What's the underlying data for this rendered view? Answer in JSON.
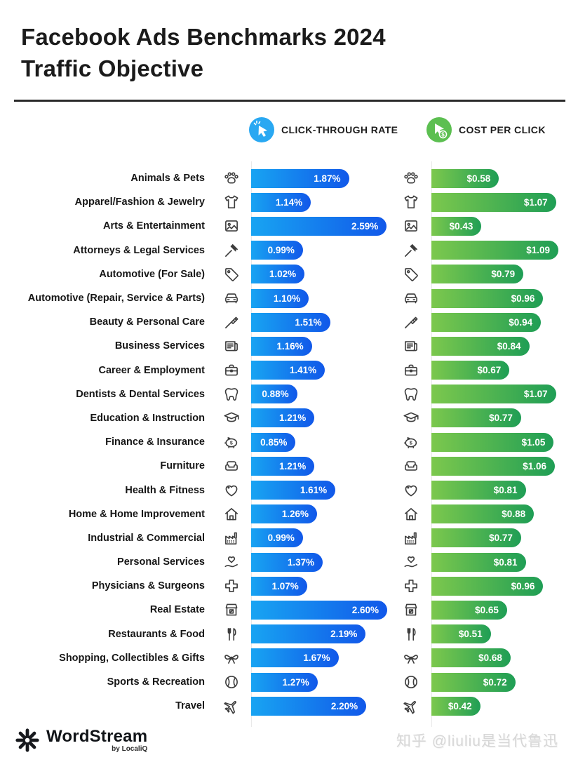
{
  "header": {
    "title_line1": "Facebook Ads Benchmarks 2024",
    "title_line2": "Traffic Objective"
  },
  "legend": {
    "ctr_label": "CLICK-THROUGH RATE",
    "cpc_label": "COST PER CLICK",
    "ctr_icon": "cursor-click-icon",
    "cpc_icon": "cursor-dollar-icon"
  },
  "colors": {
    "ctr_bar_start": "#18a4f2",
    "ctr_bar_end": "#1158e9",
    "cpc_bar_start": "#7cc84d",
    "cpc_bar_end": "#1f9e55",
    "ctr_legend_circle": "#29a8f2",
    "cpc_legend_circle": "#5cbf51"
  },
  "chart_data": {
    "type": "bar",
    "orientation": "horizontal",
    "title": "Facebook Ads Benchmarks 2024 Traffic Objective",
    "legend_position": "top",
    "grid": false,
    "categories": [
      "Animals & Pets",
      "Apparel/Fashion & Jewelry",
      "Arts & Entertainment",
      "Attorneys & Legal Services",
      "Automotive (For Sale)",
      "Automotive (Repair, Service & Parts)",
      "Beauty & Personal Care",
      "Business Services",
      "Career & Employment",
      "Dentists & Dental Services",
      "Education & Instruction",
      "Finance & Insurance",
      "Furniture",
      "Health & Fitness",
      "Home & Home Improvement",
      "Industrial & Commercial",
      "Personal Services",
      "Physicians & Surgeons",
      "Real Estate",
      "Restaurants & Food",
      "Shopping, Collectibles & Gifts",
      "Sports & Recreation",
      "Travel"
    ],
    "icons": [
      "paw-icon",
      "tshirt-icon",
      "picture-icon",
      "gavel-icon",
      "price-tag-icon",
      "car-icon",
      "brush-icon",
      "newspaper-icon",
      "briefcase-icon",
      "tooth-icon",
      "graduation-cap-icon",
      "piggy-bank-icon",
      "sofa-icon",
      "heart-icon",
      "house-icon",
      "factory-icon",
      "hand-heart-icon",
      "medical-cross-icon",
      "storefront-icon",
      "cutlery-icon",
      "bow-icon",
      "ball-icon",
      "airplane-icon"
    ],
    "series": [
      {
        "name": "Click-Through Rate",
        "unit": "%",
        "max": 2.6,
        "values": [
          1.87,
          1.14,
          2.59,
          0.99,
          1.02,
          1.1,
          1.51,
          1.16,
          1.41,
          0.88,
          1.21,
          0.85,
          1.21,
          1.61,
          1.26,
          0.99,
          1.37,
          1.07,
          2.6,
          2.19,
          1.67,
          1.27,
          2.2
        ],
        "labels": [
          "1.87%",
          "1.14%",
          "2.59%",
          "0.99%",
          "1.02%",
          "1.10%",
          "1.51%",
          "1.16%",
          "1.41%",
          "0.88%",
          "1.21%",
          "0.85%",
          "1.21%",
          "1.61%",
          "1.26%",
          "0.99%",
          "1.37%",
          "1.07%",
          "2.60%",
          "2.19%",
          "1.67%",
          "1.27%",
          "2.20%"
        ]
      },
      {
        "name": "Cost Per Click",
        "unit": "$",
        "max": 1.09,
        "values": [
          0.58,
          1.07,
          0.43,
          1.09,
          0.79,
          0.96,
          0.94,
          0.84,
          0.67,
          1.07,
          0.77,
          1.05,
          1.06,
          0.81,
          0.88,
          0.77,
          0.81,
          0.96,
          0.65,
          0.51,
          0.68,
          0.72,
          0.42
        ],
        "labels": [
          "$0.58",
          "$1.07",
          "$0.43",
          "$1.09",
          "$0.79",
          "$0.96",
          "$0.94",
          "$0.84",
          "$0.67",
          "$1.07",
          "$0.77",
          "$1.05",
          "$1.06",
          "$0.81",
          "$0.88",
          "$0.77",
          "$0.81",
          "$0.96",
          "$0.65",
          "$0.51",
          "$0.68",
          "$0.72",
          "$0.42"
        ]
      }
    ]
  },
  "footer": {
    "brand": "WordStream",
    "brand_sub": "by LocaliQ",
    "watermark": "知乎 @liuliu是当代鲁迅"
  }
}
